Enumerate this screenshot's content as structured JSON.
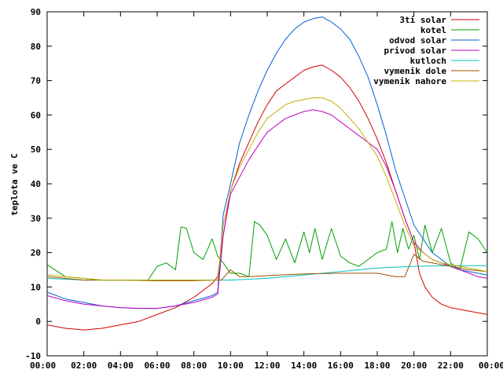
{
  "chart_data": {
    "type": "line",
    "title": "",
    "xlabel": "",
    "ylabel": "teplota ve C",
    "ylim": [
      -10,
      90
    ],
    "yticks": [
      -10,
      0,
      10,
      20,
      30,
      40,
      50,
      60,
      70,
      80,
      90
    ],
    "xlim": [
      0,
      24
    ],
    "xticks": [
      0,
      2,
      4,
      6,
      8,
      10,
      12,
      14,
      16,
      18,
      20,
      22,
      24
    ],
    "xtick_labels": [
      "00:00",
      "02:00",
      "04:00",
      "06:00",
      "08:00",
      "10:00",
      "12:00",
      "14:00",
      "16:00",
      "18:00",
      "20:00",
      "22:00",
      "00:00"
    ],
    "grid": false,
    "legend_position": "top-right",
    "series": [
      {
        "name": "3ti solar",
        "color": "#d40000",
        "x": [
          0,
          1,
          2,
          3,
          4,
          5,
          6,
          7,
          8,
          9,
          9.3,
          9.6,
          10,
          10.5,
          11,
          11.5,
          12,
          12.5,
          13,
          13.5,
          14,
          14.5,
          15,
          15.5,
          16,
          16.5,
          17,
          17.5,
          18,
          18.5,
          19,
          19.5,
          20,
          20.3,
          20.6,
          21,
          21.5,
          22,
          22.5,
          23,
          23.5,
          24
        ],
        "y": [
          -1,
          -2,
          -2.5,
          -2,
          -1,
          0,
          2,
          4,
          7,
          11,
          13,
          25,
          38,
          46,
          52,
          58,
          63,
          67,
          69,
          71,
          73,
          74,
          74.5,
          73,
          71,
          68,
          64,
          59,
          53,
          46,
          38,
          30,
          23,
          14,
          10,
          7,
          5,
          4,
          3.5,
          3,
          2.5,
          2
        ]
      },
      {
        "name": "kotel",
        "color": "#00a000",
        "x": [
          0,
          1,
          2,
          3,
          4,
          5,
          5.5,
          6,
          6.5,
          7,
          7.3,
          7.6,
          8,
          8.5,
          9,
          9.3,
          9.6,
          10,
          10.5,
          11,
          11.3,
          11.6,
          12,
          12.5,
          13,
          13.5,
          14,
          14.3,
          14.6,
          15,
          15.5,
          16,
          16.5,
          17,
          17.5,
          18,
          18.5,
          18.8,
          19.1,
          19.4,
          19.7,
          20,
          20.3,
          20.6,
          21,
          21.5,
          22,
          22.5,
          23,
          23.5,
          24
        ],
        "y": [
          16.5,
          13,
          12.5,
          12,
          12,
          12,
          12,
          16,
          17,
          15,
          27.5,
          27,
          20,
          18,
          24,
          19,
          17,
          14,
          14,
          13,
          29,
          28,
          25,
          18,
          24,
          17,
          26,
          20,
          27,
          18,
          27,
          19,
          17,
          16,
          18,
          20,
          21,
          29,
          20,
          27,
          21,
          25,
          18,
          28,
          20,
          27,
          17,
          15,
          26,
          24,
          20
        ]
      },
      {
        "name": "odvod solar",
        "color": "#0060d0",
        "x": [
          0,
          1,
          2,
          3,
          4,
          5,
          6,
          7,
          8,
          9,
          9.3,
          9.6,
          10,
          10.5,
          11,
          11.5,
          12,
          12.5,
          13,
          13.5,
          14,
          14.5,
          15,
          15.5,
          16,
          16.5,
          17,
          17.5,
          18,
          18.5,
          19,
          19.5,
          20,
          20.5,
          21,
          21.5,
          22,
          22.5,
          23,
          23.5,
          24
        ],
        "y": [
          8.5,
          6.5,
          5.5,
          4.5,
          4,
          3.8,
          3.8,
          4.5,
          6,
          7.5,
          8.5,
          31,
          40,
          52,
          60,
          67,
          73,
          78,
          82,
          85,
          87,
          88,
          88.5,
          87,
          85,
          82,
          77,
          71,
          63,
          54,
          44,
          36,
          28,
          24,
          20,
          18,
          16,
          15,
          14.5,
          14,
          13.5
        ]
      },
      {
        "name": "privod solar",
        "color": "#c000c0",
        "x": [
          0,
          1,
          2,
          3,
          4,
          5,
          6,
          7,
          8,
          9,
          9.3,
          9.6,
          10,
          10.5,
          11,
          11.5,
          12,
          12.5,
          13,
          13.5,
          14,
          14.5,
          15,
          15.5,
          16,
          16.5,
          17,
          17.5,
          18,
          18.5,
          19,
          19.5,
          20,
          20.5,
          21,
          21.5,
          22,
          22.5,
          23,
          23.5,
          24
        ],
        "y": [
          7.5,
          6,
          5,
          4.5,
          4,
          3.8,
          3.8,
          4.5,
          5.5,
          7,
          8,
          25,
          37,
          42,
          47,
          51,
          55,
          57,
          59,
          60,
          61,
          61.5,
          61,
          60,
          58,
          56,
          54,
          52,
          50,
          45,
          38,
          30,
          23,
          20,
          18,
          17,
          16,
          15,
          14,
          13,
          12.5
        ]
      },
      {
        "name": "kutloch",
        "color": "#00c0c0",
        "x": [
          0,
          2,
          4,
          6,
          8,
          10,
          12,
          14,
          16,
          18,
          20,
          22,
          24
        ],
        "y": [
          12.5,
          12,
          12,
          12,
          12,
          12,
          12.5,
          13.5,
          14.5,
          15.5,
          16,
          16.2,
          16.2
        ]
      },
      {
        "name": "vymenik dole",
        "color": "#a05000",
        "x": [
          0,
          2,
          4,
          6,
          8,
          9,
          9.5,
          10,
          10.5,
          11,
          12,
          14,
          16,
          18,
          19,
          19.5,
          20,
          20.5,
          21,
          22,
          23,
          24
        ],
        "y": [
          13,
          12,
          12,
          11.8,
          11.8,
          12,
          12,
          15,
          13,
          13,
          13.3,
          13.8,
          14,
          14,
          13,
          13,
          19.5,
          17.5,
          17,
          16,
          15,
          14.5
        ]
      },
      {
        "name": "vymenik nahore",
        "color": "#c0b000",
        "x": [
          0,
          1,
          2,
          3,
          4,
          5,
          6,
          7,
          8,
          9,
          9.3,
          9.6,
          10,
          10.5,
          11,
          11.5,
          12,
          12.5,
          13,
          13.5,
          14,
          14.5,
          15,
          15.5,
          16,
          16.5,
          17,
          17.5,
          18,
          18.5,
          19,
          19.5,
          20,
          20.5,
          21,
          21.5,
          22,
          22.5,
          23,
          23.5,
          24
        ],
        "y": [
          13.5,
          13,
          12.5,
          12,
          12,
          12,
          12,
          12,
          12,
          12,
          12,
          28,
          38,
          45,
          50,
          55,
          59,
          61,
          63,
          64,
          64.5,
          65,
          65,
          64,
          62,
          59,
          56,
          52,
          48,
          42,
          35,
          28,
          22,
          20,
          18,
          17,
          16.5,
          16,
          15.5,
          15,
          14.5
        ]
      }
    ]
  }
}
